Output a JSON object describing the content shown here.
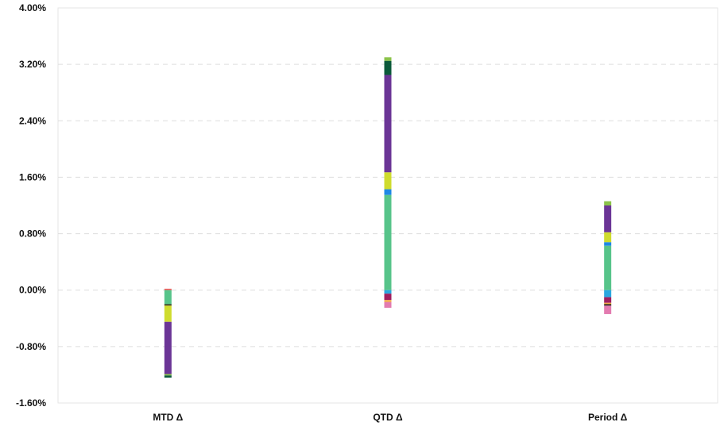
{
  "chart_data": {
    "type": "bar",
    "stacked": true,
    "categories": [
      "MTD Δ",
      "QTD Δ",
      "Period Δ"
    ],
    "y_ticks": [
      "4.00%",
      "3.20%",
      "2.40%",
      "1.60%",
      "0.80%",
      "0.00%",
      "-0.80%",
      "-1.60%"
    ],
    "ylim": [
      -1.6,
      4.0
    ],
    "grid": true,
    "legend": "none",
    "segments": [
      [
        {
          "from": 0.0,
          "to": 0.02,
          "color": "#f25a5a"
        },
        {
          "from": 0.0,
          "to": -0.2,
          "color": "#57c48a"
        },
        {
          "from": -0.2,
          "to": -0.22,
          "color": "#3b2f1a"
        },
        {
          "from": -0.22,
          "to": -0.45,
          "color": "#cfdc2e"
        },
        {
          "from": -0.45,
          "to": -1.19,
          "color": "#6b3596"
        },
        {
          "from": -1.19,
          "to": -1.21,
          "color": "#8bc34a"
        },
        {
          "from": -1.21,
          "to": -1.24,
          "color": "#0b5a3a"
        }
      ],
      [
        {
          "from": 0.0,
          "to": 1.35,
          "color": "#57c48a"
        },
        {
          "from": 1.35,
          "to": 1.43,
          "color": "#1e88e5"
        },
        {
          "from": 1.43,
          "to": 1.67,
          "color": "#cfdc2e"
        },
        {
          "from": 1.67,
          "to": 3.05,
          "color": "#6b3596"
        },
        {
          "from": 3.05,
          "to": 3.25,
          "color": "#0b5a3a"
        },
        {
          "from": 3.25,
          "to": 3.3,
          "color": "#8bc34a"
        },
        {
          "from": 0.0,
          "to": -0.05,
          "color": "#2aa8e0"
        },
        {
          "from": -0.05,
          "to": -0.14,
          "color": "#a01f5f"
        },
        {
          "from": -0.14,
          "to": -0.17,
          "color": "#f2a84a"
        },
        {
          "from": -0.17,
          "to": -0.25,
          "color": "#e37bb0"
        }
      ],
      [
        {
          "from": 0.0,
          "to": 0.63,
          "color": "#57c48a"
        },
        {
          "from": 0.63,
          "to": 0.68,
          "color": "#1e88e5"
        },
        {
          "from": 0.68,
          "to": 0.82,
          "color": "#cfdc2e"
        },
        {
          "from": 0.82,
          "to": 1.2,
          "color": "#6b3596"
        },
        {
          "from": 1.2,
          "to": 1.26,
          "color": "#8bc34a"
        },
        {
          "from": 0.0,
          "to": -0.1,
          "color": "#2aa8e0"
        },
        {
          "from": -0.1,
          "to": -0.18,
          "color": "#a01f5f"
        },
        {
          "from": -0.18,
          "to": -0.2,
          "color": "#f2a84a"
        },
        {
          "from": -0.2,
          "to": -0.22,
          "color": "#1a1a1a"
        },
        {
          "from": -0.22,
          "to": -0.34,
          "color": "#e37bb0"
        }
      ]
    ]
  }
}
